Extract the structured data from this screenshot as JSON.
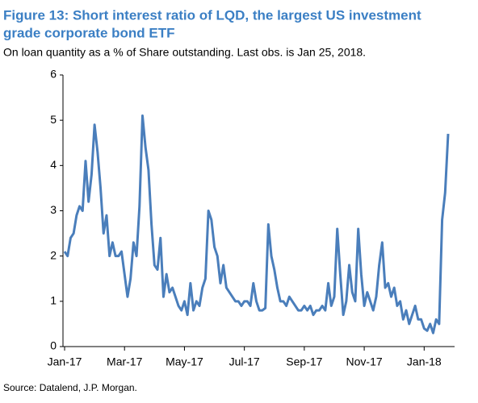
{
  "chart_data": {
    "type": "line",
    "title": [
      "Figure 13: Short interest ratio of LQD, the largest US investment",
      "grade corporate bond ETF"
    ],
    "subtitle": "On loan quantity as a % of Share outstanding. Last obs. is Jan 25, 2018.",
    "source": "Source: Datalend, J.P. Morgan.",
    "color": "#4a7ebb",
    "values": [
      2.1,
      2.0,
      2.4,
      2.5,
      2.9,
      3.1,
      3.0,
      4.1,
      3.2,
      3.8,
      4.9,
      4.3,
      3.5,
      2.5,
      2.9,
      2.0,
      2.3,
      2.0,
      2.0,
      2.1,
      1.6,
      1.1,
      1.5,
      2.3,
      2.0,
      3.1,
      5.1,
      4.4,
      3.9,
      2.7,
      1.8,
      1.7,
      2.4,
      1.1,
      1.6,
      1.2,
      1.3,
      1.1,
      0.9,
      0.8,
      1.0,
      0.7,
      1.4,
      0.8,
      1.0,
      0.9,
      1.3,
      1.5,
      3.0,
      2.8,
      2.2,
      2.0,
      1.4,
      1.8,
      1.3,
      1.2,
      1.1,
      1.0,
      1.0,
      0.9,
      1.0,
      1.0,
      0.9,
      1.4,
      1.0,
      0.8,
      0.8,
      0.85,
      2.7,
      2.0,
      1.7,
      1.3,
      1.0,
      1.0,
      0.9,
      1.1,
      1.0,
      0.9,
      0.8,
      0.8,
      0.9,
      0.8,
      0.9,
      0.7,
      0.8,
      0.8,
      0.9,
      0.8,
      1.4,
      0.9,
      1.1,
      2.6,
      1.6,
      0.7,
      1.0,
      1.8,
      1.2,
      1.0,
      2.6,
      1.6,
      0.9,
      1.2,
      1.0,
      0.8,
      1.1,
      1.8,
      2.3,
      1.3,
      1.4,
      1.1,
      1.3,
      0.9,
      1.0,
      0.6,
      0.8,
      0.5,
      0.7,
      0.9,
      0.6,
      0.6,
      0.4,
      0.35,
      0.5,
      0.3,
      0.6,
      0.5,
      2.8,
      3.4,
      4.7
    ],
    "xlim": [
      0,
      128
    ],
    "xticks": [
      {
        "value": 0,
        "label": "Jan-17"
      },
      {
        "value": 20,
        "label": "Mar-17"
      },
      {
        "value": 40,
        "label": "May-17"
      },
      {
        "value": 60,
        "label": "Jul-17"
      },
      {
        "value": 80,
        "label": "Sep-17"
      },
      {
        "value": 100,
        "label": "Nov-17"
      },
      {
        "value": 120,
        "label": "Jan-18"
      }
    ],
    "ylim": [
      0,
      6
    ],
    "yticks": [
      0,
      1,
      2,
      3,
      4,
      5,
      6
    ]
  }
}
